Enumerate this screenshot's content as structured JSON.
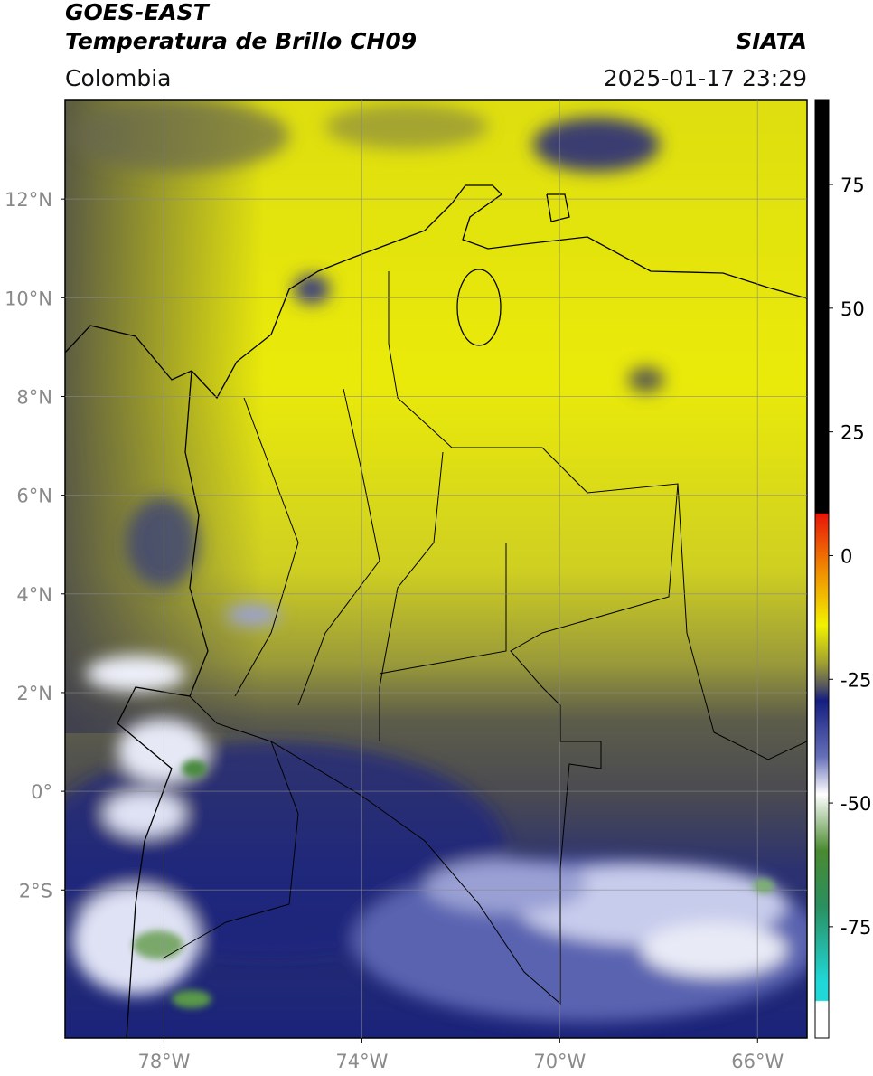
{
  "header": {
    "title": "GOES-EAST",
    "subtitle": "Temperatura de Brillo CH09",
    "source": "SIATA",
    "region": "Colombia",
    "datetime": "2025-01-17 23:29"
  },
  "map": {
    "xlim": [
      -80,
      -65
    ],
    "ylim": [
      -5,
      14
    ],
    "xticks": [
      {
        "value": -78,
        "label": "78°W"
      },
      {
        "value": -74,
        "label": "74°W"
      },
      {
        "value": -70,
        "label": "70°W"
      },
      {
        "value": -66,
        "label": "66°W"
      }
    ],
    "yticks": [
      {
        "value": 12,
        "label": "12°N"
      },
      {
        "value": 10,
        "label": "10°N"
      },
      {
        "value": 8,
        "label": "8°N"
      },
      {
        "value": 6,
        "label": "6°N"
      },
      {
        "value": 4,
        "label": "4°N"
      },
      {
        "value": 2,
        "label": "2°N"
      },
      {
        "value": 0,
        "label": "0°"
      },
      {
        "value": -2,
        "label": "2°S"
      }
    ]
  },
  "colorbar": {
    "lim": [
      -97.5,
      92
    ],
    "ticks": [
      75,
      50,
      25,
      0,
      -25,
      -50,
      -75
    ]
  }
}
